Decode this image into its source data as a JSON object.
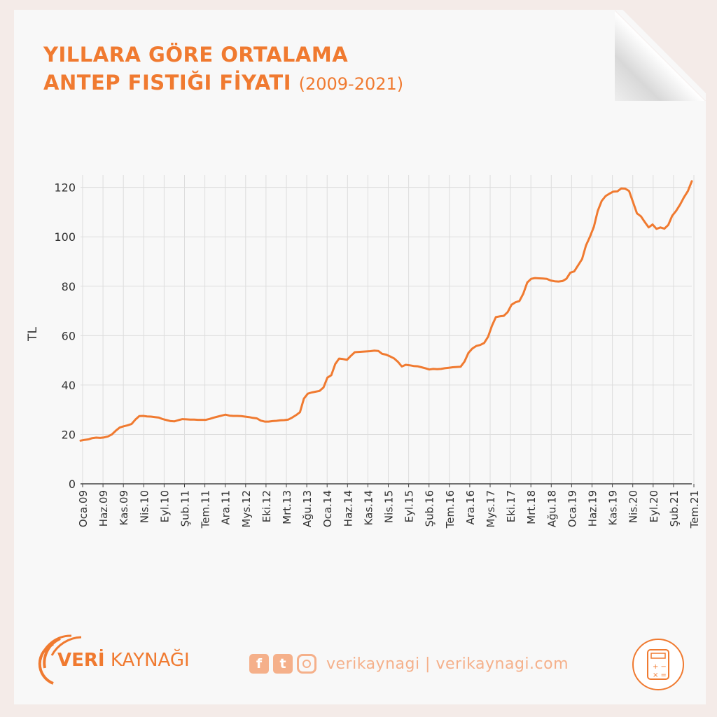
{
  "header": {
    "title_line1": "YILLARA GÖRE ORTALAMA",
    "title_line2": "ANTEP FISTIĞI FİYATI",
    "title_years": "(2009-2021)"
  },
  "chart_data": {
    "type": "line",
    "title": "YILLARA GÖRE ORTALAMA ANTEP FISTIĞI FİYATI (2009-2021)",
    "ylabel": "TL",
    "xlabel": "",
    "ylim": [
      0,
      125
    ],
    "yticks": [
      0,
      20,
      40,
      60,
      80,
      100,
      120
    ],
    "grid": true,
    "legend": "none",
    "x_tick_labels": [
      "Oca.09",
      "Haz.09",
      "Kas.09",
      "Nis.10",
      "Eyl.10",
      "Şub.11",
      "Tem.11",
      "Ara.11",
      "Mys.12",
      "Eki.12",
      "Mrt.13",
      "Ağu.13",
      "Oca.14",
      "Haz.14",
      "Kas.14",
      "Nis.15",
      "Eyl.15",
      "Şub.16",
      "Tem.16",
      "Ara.16",
      "Mys.17",
      "Eki.17",
      "Mrt.18",
      "Ağu.18",
      "Oca.19",
      "Haz.19",
      "Kas.19",
      "Nis.20",
      "Eyl.20",
      "Şub.21",
      "Tem.21"
    ],
    "color": "#f07a30",
    "series": [
      {
        "values": [
          17.5,
          17.8,
          18.0,
          18.5,
          18.7,
          18.6,
          18.8,
          19.2,
          20.0,
          21.5,
          22.8,
          23.3,
          23.7,
          24.2,
          26.0,
          27.4,
          27.5,
          27.3,
          27.2,
          27.0,
          26.8,
          26.2,
          25.8,
          25.4,
          25.3,
          25.8,
          26.2,
          26.1,
          26.0,
          26.0,
          25.9,
          25.9,
          25.9,
          26.3,
          26.8,
          27.2,
          27.6,
          28.0,
          27.6,
          27.5,
          27.5,
          27.4,
          27.2,
          27.0,
          26.7,
          26.5,
          25.6,
          25.2,
          25.2,
          25.4,
          25.5,
          25.7,
          25.8,
          26.0,
          26.8,
          27.8,
          29.0,
          34.5,
          36.5,
          37.0,
          37.3,
          37.6,
          39.0,
          43.0,
          44.0,
          48.5,
          50.7,
          50.5,
          50.2,
          51.8,
          53.3,
          53.4,
          53.5,
          53.6,
          53.7,
          53.9,
          53.8,
          52.6,
          52.3,
          51.6,
          50.8,
          49.4,
          47.5,
          48.2,
          48.0,
          47.7,
          47.6,
          47.2,
          46.8,
          46.3,
          46.5,
          46.4,
          46.5,
          46.8,
          47.0,
          47.2,
          47.3,
          47.4,
          49.5,
          53.0,
          54.8,
          55.8,
          56.2,
          57.0,
          59.5,
          64.0,
          67.5,
          67.8,
          68.0,
          69.5,
          72.5,
          73.5,
          74.0,
          77.0,
          81.5,
          83.0,
          83.3,
          83.2,
          83.1,
          83.0,
          82.3,
          82.0,
          81.9,
          82.1,
          83.0,
          85.5,
          86.0,
          88.5,
          91.0,
          96.5,
          100.0,
          104.0,
          110.5,
          114.5,
          116.5,
          117.5,
          118.3,
          118.4,
          119.6,
          119.5,
          118.5,
          114.0,
          109.5,
          108.3,
          106.0,
          103.8,
          105.0,
          103.2,
          103.8,
          103.3,
          104.8,
          108.5,
          110.5,
          113.0,
          116.0,
          118.5,
          122.5
        ]
      }
    ]
  },
  "footer": {
    "logo_bold": "VERİ",
    "logo_rest": " KAYNAĞI",
    "site": "verikaynagi | verikaynagi.com",
    "facebook_icon": "facebook-icon",
    "twitter_icon": "twitter-icon",
    "instagram_icon": "instagram-icon",
    "calculator_icon": "calculator-icon"
  }
}
